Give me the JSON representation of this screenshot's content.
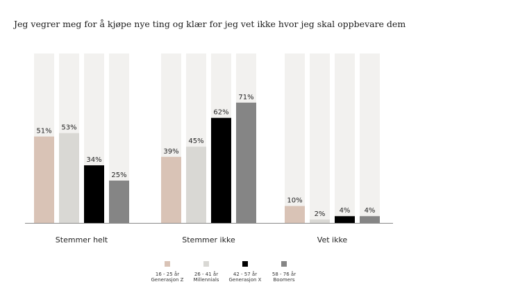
{
  "chart_data": {
    "type": "bar",
    "title": "Jeg vegrer meg for å kjøpe nye ting og klær for jeg vet ikke hvor jeg skal oppbevare dem",
    "categories": [
      "Stemmer helt",
      "Stemmer ikke",
      "Vet ikke"
    ],
    "ylim": [
      0,
      100
    ],
    "grid": false,
    "legend_position": "bottom",
    "background_bar_color": "#f2f1ef",
    "series": [
      {
        "name": "16 - 25 år Generasjon Z",
        "legend_line1": "16 - 25 år",
        "legend_line2": "Generasjon Z",
        "color": "#d9c3b6",
        "values": [
          51,
          39,
          10
        ]
      },
      {
        "name": "26 - 41 år Millennials",
        "legend_line1": "26 - 41 år",
        "legend_line2": "Millennials",
        "color": "#d9d8d4",
        "values": [
          53,
          45,
          2
        ]
      },
      {
        "name": "42 - 57 år Generasjon X",
        "legend_line1": "42 - 57 år",
        "legend_line2": "Generasjon X",
        "color": "#000000",
        "values": [
          34,
          62,
          4
        ]
      },
      {
        "name": "58 - 76 år Boomers",
        "legend_line1": "58 - 76 år",
        "legend_line2": "Boomers",
        "color": "#858585",
        "values": [
          25,
          71,
          4
        ]
      }
    ]
  }
}
